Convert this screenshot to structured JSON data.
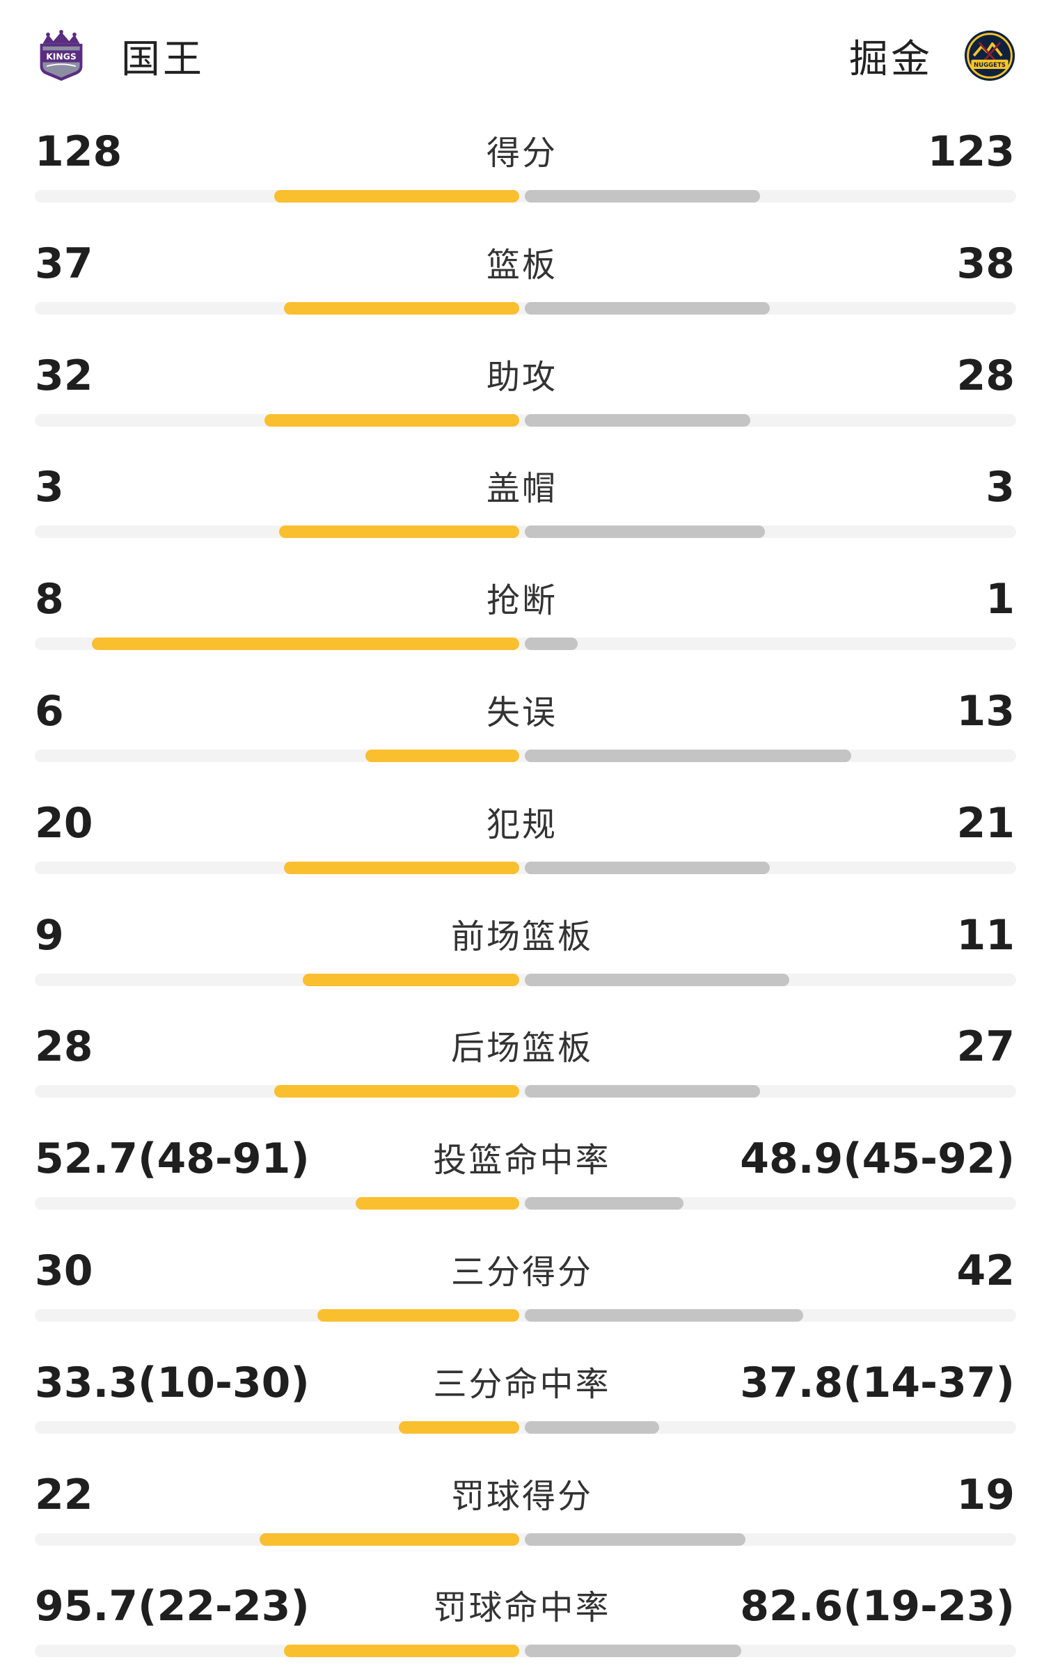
{
  "header": {
    "home_team": {
      "name": "国王",
      "logo_text": "KINGS",
      "logo_icon": "kings-logo"
    },
    "away_team": {
      "name": "掘金",
      "logo_text": "NUGGETS",
      "logo_icon": "nuggets-logo"
    }
  },
  "colors": {
    "home_bar": "#f9bf2f",
    "away_bar": "#c4c4c4",
    "track": "#f3f3f3",
    "kings_purple": "#5a2d81"
  },
  "stats": [
    {
      "label": "得分",
      "home": "128",
      "away": "123",
      "home_ratio": 0.51,
      "away_ratio": 0.49
    },
    {
      "label": "篮板",
      "home": "37",
      "away": "38",
      "home_ratio": 0.49,
      "away_ratio": 0.51
    },
    {
      "label": "助攻",
      "home": "32",
      "away": "28",
      "home_ratio": 0.53,
      "away_ratio": 0.47
    },
    {
      "label": "盖帽",
      "home": "3",
      "away": "3",
      "home_ratio": 0.5,
      "away_ratio": 0.5
    },
    {
      "label": "抢断",
      "home": "8",
      "away": "1",
      "home_ratio": 0.89,
      "away_ratio": 0.11
    },
    {
      "label": "失误",
      "home": "6",
      "away": "13",
      "home_ratio": 0.32,
      "away_ratio": 0.68
    },
    {
      "label": "犯规",
      "home": "20",
      "away": "21",
      "home_ratio": 0.49,
      "away_ratio": 0.51
    },
    {
      "label": "前场篮板",
      "home": "9",
      "away": "11",
      "home_ratio": 0.45,
      "away_ratio": 0.55
    },
    {
      "label": "后场篮板",
      "home": "28",
      "away": "27",
      "home_ratio": 0.51,
      "away_ratio": 0.49
    },
    {
      "label": "投篮命中率",
      "home": "52.7(48-91)",
      "away": "48.9(45-92)",
      "home_ratio": 0.34,
      "away_ratio": 0.33
    },
    {
      "label": "三分得分",
      "home": "30",
      "away": "42",
      "home_ratio": 0.42,
      "away_ratio": 0.58
    },
    {
      "label": "三分命中率",
      "home": "33.3(10-30)",
      "away": "37.8(14-37)",
      "home_ratio": 0.25,
      "away_ratio": 0.28
    },
    {
      "label": "罚球得分",
      "home": "22",
      "away": "19",
      "home_ratio": 0.54,
      "away_ratio": 0.46
    },
    {
      "label": "罚球命中率",
      "home": "95.7(22-23)",
      "away": "82.6(19-23)",
      "home_ratio": 0.49,
      "away_ratio": 0.45
    }
  ]
}
